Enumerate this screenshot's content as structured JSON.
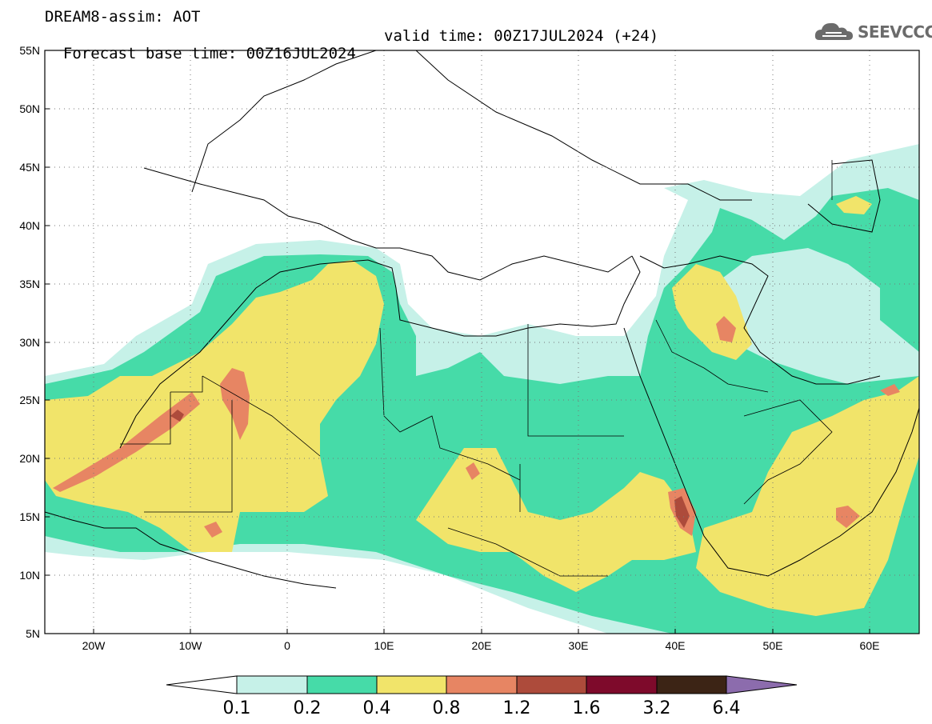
{
  "header": {
    "line1": "DREAM8-assim: AOT",
    "line2_left": "Forecast base time: 00Z16JUL2024",
    "line2_right": "valid time: 00Z17JUL2024 (+24)"
  },
  "logo": {
    "text": "SEEVCCC",
    "icon": "cloud-icon"
  },
  "map": {
    "lat_labels": [
      "55N",
      "50N",
      "45N",
      "40N",
      "35N",
      "30N",
      "25N",
      "20N",
      "15N",
      "10N",
      "5N"
    ],
    "lon_labels": [
      "20W",
      "10W",
      "0",
      "10E",
      "20E",
      "30E",
      "40E",
      "50E",
      "60E"
    ],
    "extent": {
      "lon": [
        -25,
        65
      ],
      "lat": [
        5,
        55
      ]
    },
    "gridlines": "dotted"
  },
  "colorbar": {
    "labels": [
      "0.1",
      "0.2",
      "0.4",
      "0.8",
      "1.2",
      "1.6",
      "3.2",
      "6.4"
    ],
    "colors": [
      "#ffffff",
      "#c6f1e8",
      "#46dba8",
      "#f1e46a",
      "#e78563",
      "#ad4b3b",
      "#7e0a2b",
      "#3c2415",
      "#8c6cad"
    ]
  },
  "palette": {
    "level1": "#c6f1e8",
    "level2": "#46dba8",
    "level3": "#f1e46a",
    "level4": "#e78563",
    "level5": "#ad4b3b"
  }
}
